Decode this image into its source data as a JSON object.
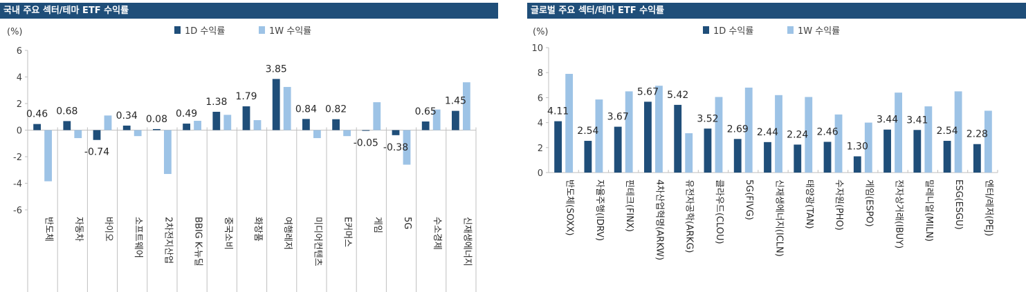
{
  "colors": {
    "title_bg": "#1f4e79",
    "series_1d": "#1f4e79",
    "series_1w": "#9dc3e6",
    "grid": "#bfbfbf"
  },
  "charts": [
    {
      "title": "국내 주요 섹터/테마 ETF 수익률",
      "chart_data": {
        "type": "bar",
        "unit_label": "(%)",
        "categories": [
          "반도체",
          "자동차",
          "바이오",
          "소프트웨어",
          "2차전지산업",
          "BBIG K-뉴딜",
          "중국소비",
          "화장품",
          "여행레저",
          "미디어컨텐츠",
          "E커머스",
          "게임",
          "5G",
          "수소경제",
          "신재생에너지"
        ],
        "series": [
          {
            "name": "1D 수익률",
            "values": [
              0.46,
              0.68,
              -0.74,
              0.34,
              0.08,
              0.49,
              1.38,
              1.79,
              3.85,
              0.84,
              0.82,
              -0.05,
              -0.38,
              0.65,
              1.45
            ]
          },
          {
            "name": "1W 수익률",
            "values": [
              -3.85,
              -0.6,
              1.1,
              -0.45,
              -3.3,
              0.7,
              1.15,
              0.75,
              3.25,
              -0.6,
              -0.45,
              2.1,
              -2.6,
              1.55,
              3.6
            ]
          }
        ],
        "data_labels": [
          "0.46",
          "0.68",
          "-0.74",
          "0.34",
          "0.08",
          "0.49",
          "1.38",
          "1.79",
          "3.85",
          "0.84",
          "0.82",
          "-0.05",
          "-0.38",
          "0.65",
          "1.45"
        ],
        "ylim": [
          -6,
          6
        ],
        "yticks": [
          -6,
          -4,
          -2,
          0,
          2,
          4,
          6
        ],
        "legend": "top"
      }
    },
    {
      "title": "글로벌 주요 섹터/테마 ETF 수익률",
      "chart_data": {
        "type": "bar",
        "unit_label": "(%)",
        "categories": [
          "반도체(SOXX)",
          "자율주행(IDRV)",
          "핀테크(FINX)",
          "4차산업혁명(ARKW)",
          "유전자공학(ARKG)",
          "클라우드(CLOU)",
          "5G(FIVG)",
          "신재생에너지(ICLN)",
          "태양광(TAN)",
          "수자원(PHO)",
          "게임(ESPO)",
          "전자상거래(IBUY)",
          "밀레니얼(MILN)",
          "ESG(ESGU)",
          "엔터/레저(PEJ)"
        ],
        "series": [
          {
            "name": "1D 수익률",
            "values": [
              4.11,
              2.54,
              3.67,
              5.67,
              5.42,
              3.52,
              2.69,
              2.44,
              2.24,
              2.46,
              1.3,
              3.44,
              3.41,
              2.54,
              2.28
            ]
          },
          {
            "name": "1W 수익률",
            "values": [
              7.9,
              5.85,
              6.5,
              6.95,
              3.15,
              6.05,
              6.8,
              6.2,
              6.05,
              4.65,
              4.0,
              6.4,
              5.3,
              6.5,
              4.95
            ]
          }
        ],
        "data_labels": [
          "4.11",
          "2.54",
          "3.67",
          "5.67",
          "5.42",
          "3.52",
          "2.69",
          "2.44",
          "2.24",
          "2.46",
          "1.30",
          "3.44",
          "3.41",
          "2.54",
          "2.28"
        ],
        "ylim": [
          0,
          10
        ],
        "yticks": [
          0,
          2,
          4,
          6,
          8,
          10
        ],
        "legend": "top"
      }
    }
  ]
}
